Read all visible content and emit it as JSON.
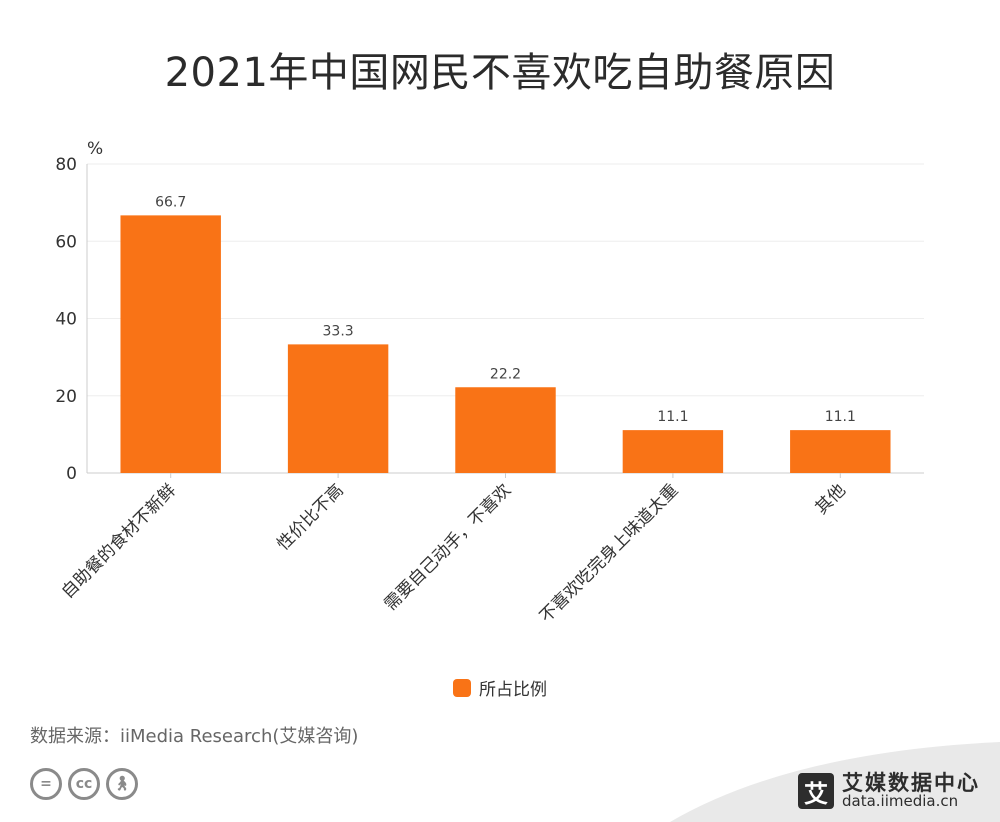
{
  "title": "2021年中国网民不喜欢吃自助餐原因",
  "source": "数据来源：iiMedia Research(艾媒咨询)",
  "brand": {
    "name": "艾媒数据中心",
    "url": "data.iimedia.cn",
    "logo_char": "艾"
  },
  "license_icons": [
    "equals-icon",
    "cc-icon",
    "person-icon"
  ],
  "colors": {
    "bar": "#F97316",
    "axis": "#cccccc",
    "grid": "#eeeeee"
  },
  "chart_data": {
    "type": "bar",
    "unit_label": "%",
    "categories": [
      "自助餐的食材不新鲜",
      "性价比不高",
      "需要自己动手，不喜欢",
      "不喜欢吃完身上味道太重",
      "其他"
    ],
    "series": [
      {
        "name": "所占比例",
        "values": [
          66.7,
          33.3,
          22.2,
          11.1,
          11.1
        ]
      }
    ],
    "ylim": [
      0,
      80
    ],
    "yticks": [
      0,
      20,
      40,
      60,
      80
    ],
    "grid": true,
    "legend_position": "bottom"
  }
}
